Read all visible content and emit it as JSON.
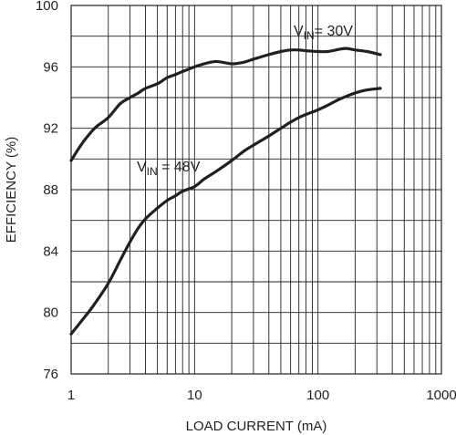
{
  "chart_data": {
    "type": "line",
    "title": "",
    "xlabel": "LOAD CURRENT (mA)",
    "ylabel": "EFFICIENCY (%)",
    "x_scale": "log",
    "xlim": [
      1,
      1000
    ],
    "ylim": [
      76,
      100
    ],
    "x_ticks": [
      1,
      10,
      100,
      1000
    ],
    "x_tick_labels": [
      "1",
      "10",
      "100",
      "1000"
    ],
    "y_ticks": [
      76,
      80,
      84,
      88,
      92,
      96,
      100
    ],
    "y_tick_labels": [
      "76",
      "80",
      "84",
      "88",
      "92",
      "96",
      "100"
    ],
    "grid": true,
    "colors": {
      "line": "#231f20",
      "grid": "#231f20",
      "background": "#ffffff"
    },
    "series": [
      {
        "label_main": "V",
        "label_sub": "IN",
        "label_rest": "= 30V",
        "x": [
          1,
          1.2,
          1.4,
          1.6,
          2,
          2.5,
          3,
          3.5,
          4,
          5,
          6,
          7,
          8,
          10,
          12,
          15,
          20,
          25,
          30,
          40,
          50,
          60,
          70,
          80,
          100,
          120,
          150,
          170,
          200,
          250,
          320
        ],
        "y": [
          89.9,
          90.9,
          91.6,
          92.1,
          92.7,
          93.6,
          94.0,
          94.3,
          94.6,
          94.9,
          95.3,
          95.5,
          95.7,
          96.0,
          96.2,
          96.35,
          96.2,
          96.3,
          96.5,
          96.8,
          97.0,
          97.1,
          97.1,
          97.05,
          97.0,
          97.0,
          97.15,
          97.2,
          97.1,
          97.0,
          96.8
        ]
      },
      {
        "label_main": "V",
        "label_sub": "IN",
        "label_rest": " = 48V",
        "x": [
          1,
          1.2,
          1.5,
          2,
          2.5,
          3,
          3.5,
          4,
          5,
          6,
          7,
          8,
          10,
          12,
          15,
          20,
          25,
          30,
          40,
          50,
          60,
          70,
          80,
          100,
          120,
          150,
          200,
          250,
          320
        ],
        "y": [
          78.6,
          79.4,
          80.4,
          81.9,
          83.4,
          84.6,
          85.5,
          86.1,
          86.8,
          87.3,
          87.6,
          87.9,
          88.2,
          88.7,
          89.2,
          89.9,
          90.5,
          90.9,
          91.5,
          92.0,
          92.4,
          92.7,
          92.9,
          93.2,
          93.5,
          93.9,
          94.3,
          94.5,
          94.6
        ]
      }
    ]
  }
}
